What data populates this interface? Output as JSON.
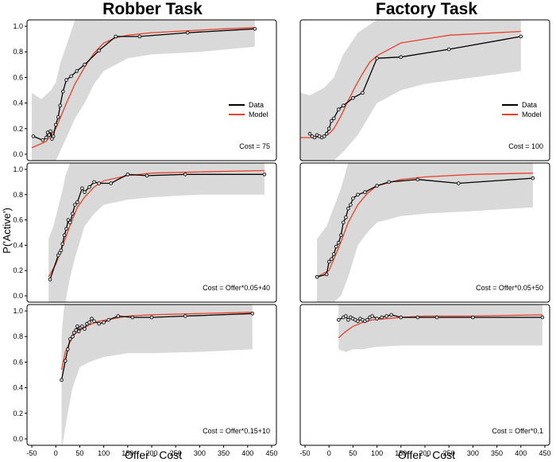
{
  "figure": {
    "col_titles": [
      "Robber Task",
      "Factory Task"
    ],
    "xlabel": "Offer - Cost",
    "ylabel": "P('Active')",
    "colors": {
      "data": "#000000",
      "model": "#e8412a",
      "band": "#d9d9d9",
      "marker_fill": "#d9d9d9"
    }
  },
  "chart_data": [
    {
      "type": "line",
      "id": "robber-cost-75",
      "annotation": "Cost = 75",
      "legend": [
        "Data",
        "Model"
      ],
      "xlim": [
        -60,
        460
      ],
      "ylim": [
        -0.05,
        1.05
      ],
      "xticks": [
        -50,
        0,
        50,
        100,
        150,
        200,
        250,
        300,
        350,
        400,
        450
      ],
      "yticks": [
        0.0,
        0.2,
        0.4,
        0.6,
        0.8,
        1.0
      ],
      "data_x": [
        -47,
        -27,
        -20,
        -17,
        -14,
        -11,
        -8,
        -5,
        0,
        5,
        9,
        15,
        22,
        32,
        44,
        60,
        90,
        125,
        175,
        275,
        415
      ],
      "data_y": [
        0.14,
        0.11,
        0.13,
        0.17,
        0.15,
        0.18,
        0.12,
        0.14,
        0.23,
        0.29,
        0.38,
        0.49,
        0.58,
        0.61,
        0.65,
        0.7,
        0.81,
        0.92,
        0.92,
        0.95,
        0.98
      ],
      "model_x": [
        -50,
        -20,
        0,
        20,
        40,
        60,
        80,
        100,
        125,
        150,
        200,
        250,
        300,
        350,
        415
      ],
      "model_y": [
        0.05,
        0.1,
        0.2,
        0.38,
        0.55,
        0.68,
        0.79,
        0.87,
        0.91,
        0.93,
        0.95,
        0.96,
        0.97,
        0.98,
        0.99
      ],
      "band_x": [
        -50,
        -30,
        -10,
        0,
        10,
        25,
        40,
        60,
        80,
        100,
        150,
        200,
        300,
        415
      ],
      "band_lo": [
        -0.05,
        -0.05,
        -0.05,
        -0.05,
        0.03,
        0.15,
        0.28,
        0.4,
        0.55,
        0.65,
        0.75,
        0.78,
        0.8,
        0.84
      ],
      "band_hi": [
        0.48,
        0.43,
        0.5,
        0.56,
        0.72,
        0.88,
        1.05,
        1.05,
        1.05,
        1.05,
        1.05,
        1.05,
        1.05,
        1.05
      ]
    },
    {
      "type": "line",
      "id": "factory-cost-100",
      "annotation": "Cost = 100",
      "legend": [
        "Data",
        "Model"
      ],
      "xlim": [
        -60,
        460
      ],
      "ylim": [
        -0.05,
        1.05
      ],
      "xticks": [
        -50,
        0,
        50,
        100,
        150,
        200,
        250,
        300,
        350,
        400,
        450
      ],
      "yticks": [
        0.0,
        0.2,
        0.4,
        0.6,
        0.8,
        1.0
      ],
      "data_x": [
        -40,
        -35,
        -30,
        -25,
        -20,
        -15,
        -10,
        -5,
        0,
        5,
        10,
        20,
        30,
        50,
        70,
        100,
        150,
        250,
        400
      ],
      "data_y": [
        0.16,
        0.14,
        0.13,
        0.15,
        0.14,
        0.13,
        0.14,
        0.16,
        0.2,
        0.26,
        0.28,
        0.35,
        0.38,
        0.44,
        0.48,
        0.75,
        0.76,
        0.82,
        0.92
      ],
      "model_x": [
        -60,
        -30,
        -10,
        0,
        10,
        25,
        40,
        55,
        70,
        85,
        100,
        150,
        250,
        400
      ],
      "model_y": [
        0.13,
        0.13,
        0.14,
        0.16,
        0.2,
        0.3,
        0.42,
        0.53,
        0.63,
        0.72,
        0.77,
        0.87,
        0.93,
        0.96
      ],
      "band_x": [
        -60,
        -40,
        -10,
        10,
        30,
        60,
        100,
        150,
        200,
        300,
        400
      ],
      "band_lo": [
        -0.05,
        -0.05,
        -0.05,
        -0.05,
        0.02,
        0.15,
        0.4,
        0.5,
        0.55,
        0.6,
        0.65
      ],
      "band_hi": [
        0.48,
        0.46,
        0.52,
        0.6,
        0.78,
        0.95,
        1.05,
        1.05,
        1.05,
        1.05,
        1.05
      ]
    },
    {
      "type": "line",
      "id": "robber-cost-offer-005-40",
      "annotation": "Cost = Offer*0.05+40",
      "xlim": [
        -60,
        460
      ],
      "ylim": [
        -0.05,
        1.05
      ],
      "xticks": [
        -50,
        0,
        50,
        100,
        150,
        200,
        250,
        300,
        350,
        400,
        450
      ],
      "yticks": [
        0.0,
        0.2,
        0.4,
        0.6,
        0.8,
        1.0
      ],
      "data_x": [
        -12,
        5,
        8,
        11,
        14,
        18,
        22,
        26,
        30,
        35,
        40,
        45,
        55,
        60,
        70,
        80,
        90,
        115,
        150,
        190,
        270,
        435
      ],
      "data_y": [
        0.13,
        0.32,
        0.34,
        0.36,
        0.41,
        0.48,
        0.53,
        0.6,
        0.58,
        0.65,
        0.72,
        0.74,
        0.85,
        0.82,
        0.86,
        0.9,
        0.89,
        0.89,
        0.96,
        0.95,
        0.96,
        0.96
      ],
      "model_x": [
        -15,
        0,
        15,
        30,
        45,
        60,
        80,
        100,
        150,
        200,
        300,
        435
      ],
      "model_y": [
        0.15,
        0.25,
        0.4,
        0.56,
        0.7,
        0.78,
        0.86,
        0.91,
        0.95,
        0.97,
        0.98,
        0.99
      ],
      "band_x": [
        -15,
        -5,
        5,
        15,
        20,
        30,
        40,
        60,
        80,
        100,
        150,
        200,
        300,
        435
      ],
      "band_lo": [
        -0.05,
        -0.05,
        -0.05,
        -0.05,
        -0.05,
        0.15,
        0.3,
        0.55,
        0.65,
        0.72,
        0.76,
        0.78,
        0.8,
        0.8
      ],
      "band_hi": [
        0.45,
        0.55,
        0.7,
        0.85,
        0.95,
        1.05,
        1.05,
        1.05,
        1.05,
        1.05,
        1.05,
        1.05,
        1.05,
        1.05
      ]
    },
    {
      "type": "line",
      "id": "factory-cost-offer-005-50",
      "annotation": "Cost = Offer*0.05+50",
      "xlim": [
        -60,
        460
      ],
      "ylim": [
        -0.05,
        1.05
      ],
      "xticks": [
        -50,
        0,
        50,
        100,
        150,
        200,
        250,
        300,
        350,
        400,
        450
      ],
      "yticks": [
        0.0,
        0.2,
        0.4,
        0.6,
        0.8,
        1.0
      ],
      "data_x": [
        -25,
        -5,
        0,
        5,
        10,
        15,
        20,
        25,
        30,
        35,
        40,
        45,
        50,
        60,
        75,
        100,
        125,
        185,
        270,
        425
      ],
      "data_y": [
        0.15,
        0.17,
        0.27,
        0.29,
        0.33,
        0.39,
        0.42,
        0.48,
        0.58,
        0.62,
        0.69,
        0.72,
        0.77,
        0.8,
        0.82,
        0.87,
        0.9,
        0.92,
        0.89,
        0.93
      ],
      "model_x": [
        -25,
        0,
        20,
        40,
        60,
        80,
        100,
        150,
        200,
        300,
        425
      ],
      "model_y": [
        0.15,
        0.2,
        0.38,
        0.58,
        0.72,
        0.81,
        0.87,
        0.92,
        0.94,
        0.96,
        0.97
      ],
      "band_x": [
        -25,
        -5,
        10,
        25,
        40,
        60,
        80,
        100,
        150,
        200,
        300,
        425
      ],
      "band_lo": [
        -0.05,
        -0.05,
        -0.05,
        0.0,
        0.15,
        0.4,
        0.5,
        0.58,
        0.63,
        0.65,
        0.67,
        0.7
      ],
      "band_hi": [
        0.45,
        0.55,
        0.7,
        0.85,
        1.05,
        1.05,
        1.05,
        1.05,
        1.05,
        1.05,
        1.05,
        1.05
      ]
    },
    {
      "type": "line",
      "id": "robber-cost-offer-015-10",
      "annotation": "Cost = Offer*0.15+10",
      "xlim": [
        -60,
        460
      ],
      "ylim": [
        -0.05,
        1.05
      ],
      "xticks": [
        -50,
        0,
        50,
        100,
        150,
        200,
        250,
        300,
        350,
        400,
        450
      ],
      "yticks": [
        0.0,
        0.2,
        0.4,
        0.6,
        0.8,
        1.0
      ],
      "data_x": [
        12,
        20,
        25,
        30,
        35,
        38,
        42,
        45,
        48,
        52,
        55,
        60,
        65,
        70,
        75,
        80,
        90,
        100,
        110,
        130,
        160,
        200,
        270,
        410
      ],
      "data_y": [
        0.46,
        0.61,
        0.7,
        0.78,
        0.8,
        0.83,
        0.85,
        0.88,
        0.84,
        0.87,
        0.88,
        0.86,
        0.9,
        0.91,
        0.94,
        0.92,
        0.9,
        0.91,
        0.93,
        0.96,
        0.95,
        0.95,
        0.96,
        0.98
      ],
      "model_x": [
        12,
        20,
        30,
        40,
        55,
        70,
        90,
        120,
        150,
        200,
        300,
        410
      ],
      "model_y": [
        0.54,
        0.68,
        0.76,
        0.82,
        0.86,
        0.89,
        0.92,
        0.94,
        0.96,
        0.97,
        0.98,
        0.99
      ],
      "band_x": [
        12,
        14,
        18,
        25,
        35,
        50,
        70,
        100,
        150,
        200,
        300,
        410
      ],
      "band_lo": [
        -0.05,
        -0.05,
        0.05,
        0.2,
        0.4,
        0.56,
        0.6,
        0.64,
        0.67,
        0.67,
        0.68,
        0.7
      ],
      "band_hi": [
        0.8,
        0.9,
        1.05,
        1.05,
        1.05,
        1.05,
        1.05,
        1.05,
        1.05,
        1.05,
        1.05,
        1.05
      ]
    },
    {
      "type": "line",
      "id": "factory-cost-offer-01",
      "annotation": "Cost = Offer*0.1",
      "xlim": [
        -60,
        460
      ],
      "ylim": [
        -0.05,
        1.05
      ],
      "xticks": [
        -50,
        0,
        50,
        100,
        150,
        200,
        250,
        300,
        350,
        400,
        450
      ],
      "yticks": [
        0.0,
        0.2,
        0.4,
        0.6,
        0.8,
        1.0
      ],
      "data_x": [
        20,
        30,
        35,
        40,
        45,
        50,
        55,
        60,
        65,
        70,
        75,
        80,
        85,
        90,
        100,
        110,
        120,
        130,
        150,
        185,
        225,
        300,
        445
      ],
      "data_y": [
        0.93,
        0.95,
        0.96,
        0.93,
        0.95,
        0.94,
        0.93,
        0.92,
        0.94,
        0.93,
        0.92,
        0.93,
        0.95,
        0.96,
        0.94,
        0.95,
        0.96,
        0.97,
        0.95,
        0.95,
        0.95,
        0.95,
        0.95
      ],
      "model_x": [
        20,
        35,
        50,
        70,
        90,
        120,
        150,
        200,
        300,
        445
      ],
      "model_y": [
        0.79,
        0.84,
        0.88,
        0.91,
        0.93,
        0.94,
        0.95,
        0.96,
        0.96,
        0.97
      ],
      "band_x": [
        20,
        35,
        50,
        70,
        100,
        150,
        200,
        300,
        445
      ],
      "band_lo": [
        0.7,
        0.68,
        0.7,
        0.7,
        0.72,
        0.73,
        0.73,
        0.73,
        0.73
      ],
      "band_hi": [
        1.05,
        1.05,
        1.05,
        1.05,
        1.05,
        1.05,
        1.05,
        1.05,
        1.05
      ]
    }
  ]
}
